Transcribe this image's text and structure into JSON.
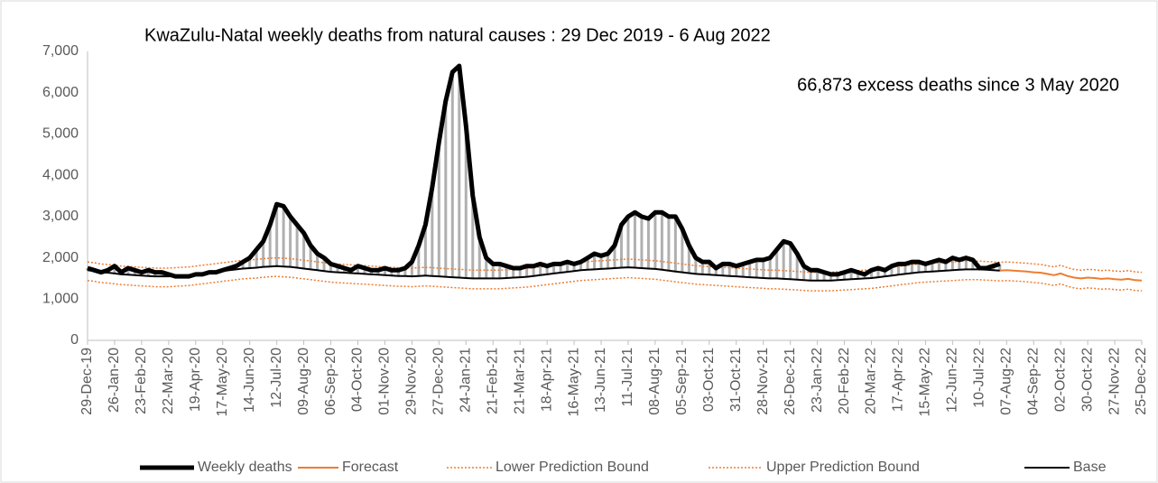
{
  "chart_data": {
    "type": "line",
    "title": "KwaZulu-Natal weekly deaths from natural causes : 29 Dec 2019  - 6 Aug 2022",
    "annotation": "66,873 excess deaths since 3 May 2020",
    "categories": [
      "29-Dec-19",
      null,
      null,
      null,
      "26-Jan-20",
      null,
      null,
      null,
      "23-Feb-20",
      null,
      null,
      null,
      "22-Mar-20",
      null,
      null,
      null,
      "19-Apr-20",
      null,
      null,
      null,
      "17-May-20",
      null,
      null,
      null,
      "14-Jun-20",
      null,
      null,
      null,
      "12-Jul-20",
      null,
      null,
      null,
      "09-Aug-20",
      null,
      null,
      null,
      "06-Sep-20",
      null,
      null,
      null,
      "04-Oct-20",
      null,
      null,
      null,
      "01-Nov-20",
      null,
      null,
      null,
      "29-Nov-20",
      null,
      null,
      null,
      "27-Dec-20",
      null,
      null,
      null,
      "24-Jan-21",
      null,
      null,
      null,
      "21-Feb-21",
      null,
      null,
      null,
      "21-Mar-21",
      null,
      null,
      null,
      "18-Apr-21",
      null,
      null,
      null,
      "16-May-21",
      null,
      null,
      null,
      "13-Jun-21",
      null,
      null,
      null,
      "11-Jul-21",
      null,
      null,
      null,
      "08-Aug-21",
      null,
      null,
      null,
      "05-Sep-21",
      null,
      null,
      null,
      "03-Oct-21",
      null,
      null,
      null,
      "31-Oct-21",
      null,
      null,
      null,
      "28-Nov-21",
      null,
      null,
      null,
      "26-Dec-21",
      null,
      null,
      null,
      "23-Jan-22",
      null,
      null,
      null,
      "20-Feb-22",
      null,
      null,
      null,
      "20-Mar-22",
      null,
      null,
      null,
      "17-Apr-22",
      null,
      null,
      null,
      "15-May-22",
      null,
      null,
      null,
      "12-Jun-22",
      null,
      null,
      null,
      "10-Jul-22",
      null,
      null,
      null,
      "07-Aug-22",
      null,
      null,
      null,
      "04-Sep-22",
      null,
      null,
      null,
      "02-Oct-22",
      null,
      null,
      null,
      "30-Oct-22",
      null,
      null,
      null,
      "27-Nov-22",
      null,
      null,
      null,
      "25-Dec-22"
    ],
    "series": [
      {
        "name": "Weekly deaths",
        "color": "#000000",
        "width": 5,
        "dash": "none",
        "values": [
          1750,
          1700,
          1650,
          1700,
          1800,
          1650,
          1750,
          1700,
          1650,
          1700,
          1650,
          1650,
          1600,
          1550,
          1550,
          1550,
          1600,
          1600,
          1650,
          1650,
          1700,
          1750,
          1800,
          1900,
          2000,
          2200,
          2400,
          2800,
          3300,
          3250,
          3000,
          2800,
          2600,
          2300,
          2100,
          2000,
          1850,
          1800,
          1750,
          1700,
          1800,
          1750,
          1700,
          1700,
          1750,
          1700,
          1700,
          1750,
          1900,
          2300,
          2800,
          3700,
          4800,
          5800,
          6500,
          6650,
          5200,
          3500,
          2500,
          2000,
          1850,
          1850,
          1800,
          1750,
          1750,
          1800,
          1800,
          1850,
          1800,
          1850,
          1850,
          1900,
          1850,
          1900,
          2000,
          2100,
          2050,
          2100,
          2300,
          2800,
          3000,
          3100,
          3000,
          2950,
          3100,
          3100,
          3000,
          3000,
          2700,
          2300,
          2000,
          1900,
          1900,
          1750,
          1850,
          1850,
          1800,
          1850,
          1900,
          1950,
          1950,
          2000,
          2200,
          2400,
          2350,
          2100,
          1800,
          1700,
          1700,
          1650,
          1600,
          1600,
          1650,
          1700,
          1650,
          1600,
          1700,
          1750,
          1700,
          1800,
          1850,
          1850,
          1900,
          1900,
          1850,
          1900,
          1950,
          1900,
          2000,
          1950,
          2000,
          1950,
          1750,
          1750,
          1800,
          1850,
          null,
          null,
          null,
          null,
          null,
          null,
          null,
          null,
          null,
          null,
          null,
          null,
          null,
          null,
          null,
          null,
          null,
          null,
          null,
          null,
          null
        ]
      },
      {
        "name": "Forecast",
        "color": "#ED7D31",
        "width": 2,
        "dash": "none",
        "values": [
          null,
          null,
          null,
          null,
          null,
          null,
          null,
          null,
          null,
          null,
          null,
          null,
          null,
          null,
          null,
          null,
          null,
          null,
          null,
          null,
          null,
          null,
          null,
          null,
          null,
          null,
          null,
          null,
          null,
          null,
          null,
          null,
          null,
          null,
          null,
          null,
          null,
          null,
          null,
          null,
          null,
          null,
          null,
          null,
          null,
          null,
          null,
          null,
          null,
          null,
          null,
          null,
          null,
          null,
          null,
          null,
          null,
          null,
          null,
          null,
          null,
          null,
          null,
          null,
          null,
          null,
          null,
          null,
          null,
          null,
          null,
          null,
          null,
          null,
          null,
          null,
          null,
          null,
          null,
          null,
          null,
          null,
          null,
          null,
          null,
          null,
          null,
          null,
          null,
          null,
          null,
          null,
          null,
          null,
          null,
          null,
          null,
          null,
          null,
          null,
          null,
          null,
          null,
          null,
          null,
          null,
          null,
          null,
          null,
          null,
          null,
          null,
          null,
          null,
          null,
          null,
          null,
          null,
          null,
          null,
          null,
          null,
          null,
          null,
          null,
          null,
          null,
          null,
          null,
          null,
          null,
          null,
          null,
          null,
          null,
          1690,
          1700,
          1690,
          1680,
          1670,
          1650,
          1640,
          1610,
          1580,
          1620,
          1560,
          1520,
          1500,
          1520,
          1510,
          1490,
          1500,
          1480,
          1470,
          1490,
          1460,
          1450
        ]
      },
      {
        "name": "Lower Prediction Bound",
        "color": "#ED7D31",
        "width": 1.5,
        "dash": "2 2",
        "values": [
          1450,
          1430,
          1400,
          1390,
          1370,
          1350,
          1340,
          1330,
          1320,
          1310,
          1300,
          1300,
          1300,
          1310,
          1320,
          1330,
          1350,
          1370,
          1390,
          1410,
          1430,
          1450,
          1470,
          1490,
          1500,
          1510,
          1530,
          1540,
          1550,
          1540,
          1530,
          1510,
          1490,
          1470,
          1450,
          1430,
          1410,
          1400,
          1390,
          1380,
          1370,
          1360,
          1350,
          1340,
          1330,
          1320,
          1310,
          1310,
          1300,
          1310,
          1320,
          1310,
          1300,
          1290,
          1280,
          1270,
          1260,
          1250,
          1250,
          1250,
          1250,
          1250,
          1260,
          1270,
          1280,
          1290,
          1310,
          1330,
          1350,
          1370,
          1390,
          1410,
          1430,
          1450,
          1460,
          1470,
          1480,
          1490,
          1500,
          1510,
          1520,
          1510,
          1500,
          1490,
          1480,
          1460,
          1440,
          1420,
          1400,
          1380,
          1360,
          1350,
          1340,
          1330,
          1320,
          1310,
          1300,
          1290,
          1280,
          1270,
          1260,
          1250,
          1250,
          1240,
          1230,
          1220,
          1210,
          1200,
          1200,
          1200,
          1200,
          1210,
          1220,
          1230,
          1240,
          1250,
          1260,
          1280,
          1300,
          1320,
          1340,
          1360,
          1380,
          1400,
          1410,
          1420,
          1430,
          1440,
          1450,
          1460,
          1470,
          1470,
          1470,
          1460,
          1450,
          1440,
          1450,
          1440,
          1430,
          1420,
          1400,
          1390,
          1360,
          1330,
          1370,
          1310,
          1270,
          1250,
          1270,
          1260,
          1240,
          1250,
          1230,
          1220,
          1240,
          1210,
          1200
        ]
      },
      {
        "name": "Upper Prediction Bound",
        "color": "#ED7D31",
        "width": 1.5,
        "dash": "2 2",
        "values": [
          1900,
          1880,
          1850,
          1840,
          1820,
          1800,
          1790,
          1780,
          1770,
          1760,
          1750,
          1750,
          1750,
          1760,
          1770,
          1780,
          1800,
          1820,
          1840,
          1860,
          1880,
          1900,
          1920,
          1940,
          1950,
          1960,
          1980,
          1990,
          2000,
          1990,
          1980,
          1960,
          1940,
          1920,
          1900,
          1880,
          1860,
          1850,
          1840,
          1830,
          1820,
          1810,
          1800,
          1790,
          1780,
          1770,
          1760,
          1760,
          1750,
          1760,
          1770,
          1760,
          1750,
          1740,
          1730,
          1720,
          1710,
          1700,
          1700,
          1700,
          1700,
          1700,
          1710,
          1720,
          1730,
          1740,
          1760,
          1780,
          1800,
          1820,
          1840,
          1860,
          1880,
          1900,
          1910,
          1920,
          1930,
          1940,
          1950,
          1960,
          1970,
          1960,
          1950,
          1940,
          1930,
          1910,
          1890,
          1870,
          1850,
          1830,
          1810,
          1800,
          1790,
          1780,
          1770,
          1760,
          1750,
          1740,
          1730,
          1720,
          1710,
          1700,
          1700,
          1690,
          1680,
          1670,
          1660,
          1650,
          1650,
          1650,
          1650,
          1660,
          1670,
          1680,
          1690,
          1700,
          1710,
          1730,
          1750,
          1770,
          1790,
          1810,
          1830,
          1850,
          1860,
          1870,
          1880,
          1890,
          1900,
          1910,
          1920,
          1920,
          1920,
          1910,
          1900,
          1890,
          1900,
          1890,
          1880,
          1870,
          1850,
          1840,
          1810,
          1780,
          1820,
          1760,
          1720,
          1700,
          1720,
          1710,
          1690,
          1700,
          1680,
          1670,
          1690,
          1660,
          1650
        ]
      },
      {
        "name": "Base",
        "color": "#000000",
        "width": 2,
        "dash": "none",
        "values": [
          1700,
          1680,
          1650,
          1640,
          1620,
          1600,
          1590,
          1580,
          1570,
          1560,
          1550,
          1550,
          1550,
          1560,
          1570,
          1580,
          1600,
          1620,
          1640,
          1660,
          1680,
          1700,
          1720,
          1740,
          1750,
          1760,
          1780,
          1790,
          1800,
          1790,
          1780,
          1760,
          1740,
          1720,
          1700,
          1680,
          1660,
          1650,
          1640,
          1630,
          1620,
          1610,
          1600,
          1590,
          1580,
          1570,
          1560,
          1560,
          1550,
          1560,
          1570,
          1560,
          1550,
          1540,
          1530,
          1520,
          1510,
          1500,
          1500,
          1500,
          1500,
          1500,
          1510,
          1520,
          1530,
          1540,
          1560,
          1580,
          1600,
          1620,
          1640,
          1660,
          1680,
          1700,
          1710,
          1720,
          1730,
          1740,
          1750,
          1760,
          1770,
          1760,
          1750,
          1740,
          1730,
          1710,
          1690,
          1670,
          1650,
          1630,
          1610,
          1600,
          1590,
          1580,
          1570,
          1560,
          1550,
          1540,
          1530,
          1520,
          1510,
          1500,
          1500,
          1490,
          1480,
          1470,
          1460,
          1450,
          1450,
          1450,
          1450,
          1460,
          1470,
          1480,
          1490,
          1500,
          1510,
          1530,
          1550,
          1570,
          1590,
          1610,
          1630,
          1650,
          1660,
          1670,
          1680,
          1690,
          1700,
          1710,
          1720,
          1720,
          1720,
          1710,
          1700,
          1690,
          null,
          null,
          null,
          null,
          null,
          null,
          null,
          null,
          null,
          null,
          null,
          null,
          null,
          null,
          null,
          null,
          null,
          null,
          null,
          null,
          null
        ]
      }
    ],
    "excess_color": "#b0b0b0",
    "ylim": [
      0,
      7000
    ],
    "yticks": [
      0,
      {
        "value": 1000,
        "label": "1,000"
      },
      {
        "value": 2000,
        "label": "2,000"
      },
      {
        "value": 3000,
        "label": "3,000"
      },
      {
        "value": 4000,
        "label": "4,000"
      },
      {
        "value": 5000,
        "label": "5,000"
      },
      {
        "value": 6000,
        "label": "6,000"
      },
      {
        "value": 7000,
        "label": "7,000"
      }
    ],
    "grid": false,
    "legend": "bottom"
  }
}
